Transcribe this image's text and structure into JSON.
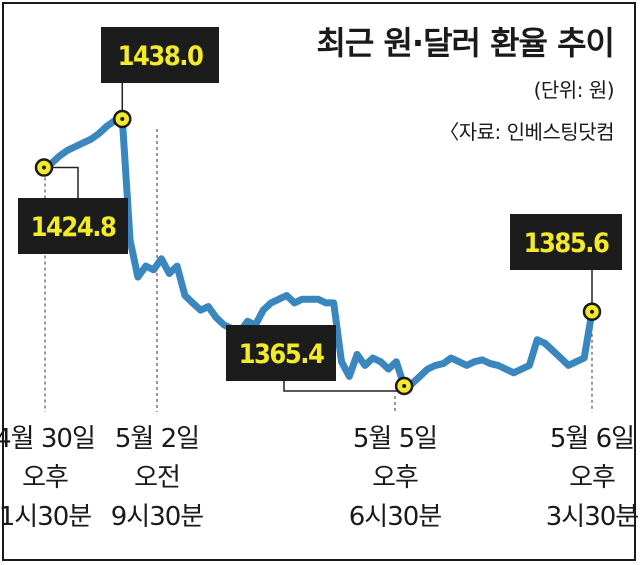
{
  "chart_data": {
    "type": "line",
    "title": "최근 원·달러 환율 추이",
    "unit_note": "(단위: 원)",
    "source_note": "〈자료: 인베스팅닷컴",
    "series": [
      {
        "values": [
          1424.8,
          1426,
          1428,
          1429.5,
          1430.5,
          1431.5,
          1432.5,
          1434,
          1436,
          1437.5,
          1438.0,
          1405,
          1395,
          1398,
          1397,
          1400,
          1396,
          1398,
          1390,
          1388,
          1386,
          1387,
          1384,
          1382,
          1381,
          1380,
          1383,
          1382,
          1386,
          1388,
          1389,
          1390,
          1388,
          1389,
          1389,
          1389,
          1388,
          1388,
          1372,
          1368,
          1374,
          1371,
          1373,
          1372,
          1370,
          1372,
          1365.4,
          1366,
          1368,
          1370,
          1371,
          1371.5,
          1373,
          1372,
          1371,
          1372,
          1372.5,
          1371.5,
          1371,
          1370,
          1369,
          1370,
          1371,
          1378,
          1377,
          1375,
          1373,
          1371,
          1372,
          1373,
          1385.6
        ]
      }
    ],
    "callouts": [
      {
        "value": "1424.8"
      },
      {
        "value": "1438.0"
      },
      {
        "value": "1365.4"
      },
      {
        "value": "1385.6"
      }
    ],
    "x_labels": [
      {
        "lines": [
          "4월 30일",
          "오후",
          "1시30분"
        ]
      },
      {
        "lines": [
          "5월 2일",
          "오전",
          "9시30분"
        ]
      },
      {
        "lines": [
          "5월 5일",
          "오후",
          "6시30분"
        ]
      },
      {
        "lines": [
          "5월 6일",
          "오후",
          "3시30분"
        ]
      }
    ],
    "colors": {
      "line": "#3a87bf",
      "callout_bg": "#1c1c1c",
      "callout_text": "#f3ea2a",
      "marker_fill": "#f3ea2a"
    }
  }
}
